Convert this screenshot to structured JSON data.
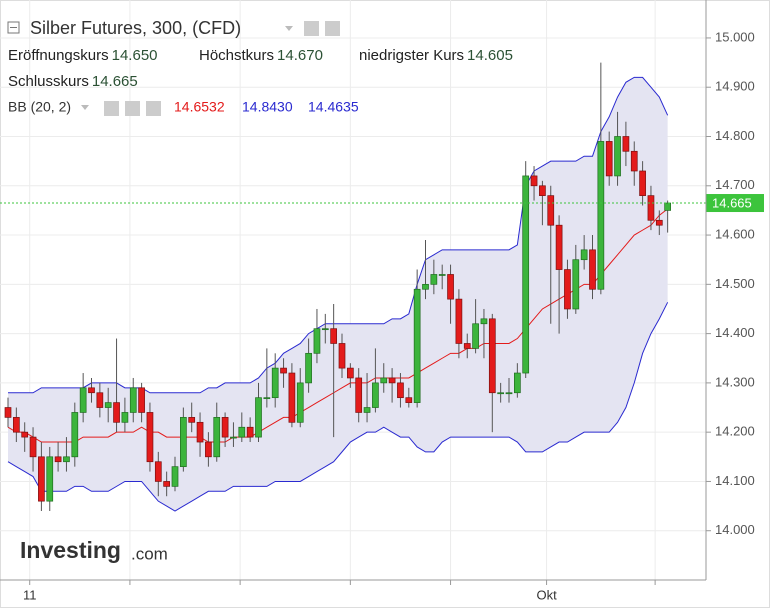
{
  "chart_data": {
    "type": "candlestick",
    "title": "Silber Futures, 300, (CFD)",
    "ohlc_legend": [
      {
        "name": "Eröffnungskurs",
        "label": "14.650"
      },
      {
        "name": "Höchstkurs",
        "label": "14.670"
      },
      {
        "name": "niedrigster Kurs",
        "label": "14.605"
      },
      {
        "name": "Schlusskurs",
        "label": "14.665"
      }
    ],
    "up_color": "#3cb43c",
    "down_color": "#e31b1b",
    "open": [
      14.25,
      14.23,
      14.2,
      14.19,
      14.15,
      14.06,
      14.15,
      14.14,
      14.15,
      14.24,
      14.29,
      14.28,
      14.25,
      14.26,
      14.22,
      14.24,
      14.29,
      14.24,
      14.14,
      14.1,
      14.09,
      14.13,
      14.23,
      14.22,
      14.18,
      14.15,
      14.23,
      14.19,
      14.19,
      14.21,
      14.19,
      14.27,
      14.27,
      14.33,
      14.32,
      14.22,
      14.3,
      14.36,
      14.41,
      14.41,
      14.38,
      14.33,
      14.31,
      14.24,
      14.25,
      14.3,
      14.31,
      14.3,
      14.27,
      14.26,
      14.49,
      14.5,
      14.52,
      14.52,
      14.47,
      14.38,
      14.37,
      14.42,
      14.43,
      14.28,
      14.28,
      14.28,
      14.32,
      14.72,
      14.7,
      14.68,
      14.62,
      14.53,
      14.45,
      14.55,
      14.57,
      14.49,
      14.79,
      14.72,
      14.8,
      14.77,
      14.73,
      14.68,
      14.63,
      14.65
    ],
    "high": [
      14.27,
      14.25,
      14.22,
      14.21,
      14.18,
      14.17,
      14.18,
      14.19,
      14.26,
      14.32,
      14.31,
      14.3,
      14.29,
      14.39,
      14.27,
      14.31,
      14.3,
      14.26,
      14.16,
      14.12,
      14.15,
      14.25,
      14.26,
      14.24,
      14.2,
      14.26,
      14.24,
      14.22,
      14.24,
      14.23,
      14.3,
      14.37,
      14.36,
      14.35,
      14.34,
      14.33,
      14.39,
      14.45,
      14.44,
      14.46,
      14.4,
      14.34,
      14.33,
      14.32,
      14.37,
      14.34,
      14.33,
      14.32,
      14.29,
      14.53,
      14.59,
      14.55,
      14.54,
      14.54,
      14.49,
      14.4,
      14.47,
      14.45,
      14.44,
      14.3,
      14.31,
      14.34,
      14.75,
      14.74,
      14.71,
      14.7,
      14.64,
      14.55,
      14.58,
      14.6,
      14.6,
      14.95,
      14.81,
      14.85,
      14.83,
      14.79,
      14.75,
      14.7,
      14.65,
      14.67
    ],
    "low": [
      14.21,
      14.18,
      14.16,
      14.12,
      14.04,
      14.04,
      14.12,
      14.12,
      14.13,
      14.22,
      14.26,
      14.23,
      14.22,
      14.2,
      14.2,
      14.22,
      14.22,
      14.12,
      14.07,
      14.07,
      14.08,
      14.12,
      14.2,
      14.15,
      14.13,
      14.14,
      14.17,
      14.17,
      14.18,
      14.18,
      14.18,
      14.25,
      14.25,
      14.29,
      14.21,
      14.21,
      14.28,
      14.34,
      14.38,
      14.19,
      14.31,
      14.29,
      14.22,
      14.22,
      14.24,
      14.28,
      14.26,
      14.25,
      14.25,
      14.25,
      14.47,
      14.48,
      14.49,
      14.42,
      14.35,
      14.35,
      14.36,
      14.35,
      14.2,
      14.26,
      14.26,
      14.27,
      14.31,
      14.67,
      14.62,
      14.42,
      14.4,
      14.43,
      14.44,
      14.53,
      14.47,
      14.48,
      14.7,
      14.7,
      14.74,
      14.7,
      14.66,
      14.61,
      14.6,
      14.605
    ],
    "close": [
      14.23,
      14.2,
      14.19,
      14.15,
      14.06,
      14.15,
      14.14,
      14.15,
      14.24,
      14.29,
      14.28,
      14.25,
      14.26,
      14.22,
      14.24,
      14.29,
      14.24,
      14.14,
      14.1,
      14.09,
      14.13,
      14.23,
      14.22,
      14.18,
      14.15,
      14.23,
      14.19,
      14.19,
      14.21,
      14.19,
      14.27,
      14.27,
      14.33,
      14.32,
      14.22,
      14.3,
      14.36,
      14.41,
      14.41,
      14.38,
      14.33,
      14.31,
      14.24,
      14.25,
      14.3,
      14.31,
      14.3,
      14.27,
      14.26,
      14.49,
      14.5,
      14.52,
      14.52,
      14.47,
      14.38,
      14.37,
      14.42,
      14.43,
      14.28,
      14.28,
      14.28,
      14.32,
      14.72,
      14.7,
      14.68,
      14.62,
      14.53,
      14.45,
      14.55,
      14.57,
      14.49,
      14.79,
      14.72,
      14.8,
      14.77,
      14.73,
      14.68,
      14.63,
      14.62,
      14.665
    ],
    "indicator": {
      "name": "BB (20, 2)",
      "band_color": "#e4e4f2",
      "series": [
        {
          "color": "#e31b1b",
          "label": "14.6532",
          "values": [
            14.21,
            14.2,
            14.2,
            14.19,
            14.18,
            14.18,
            14.18,
            14.18,
            14.18,
            14.19,
            14.19,
            14.19,
            14.19,
            14.2,
            14.2,
            14.2,
            14.21,
            14.2,
            14.2,
            14.19,
            14.19,
            14.19,
            14.19,
            14.19,
            14.18,
            14.18,
            14.18,
            14.19,
            14.19,
            14.19,
            14.2,
            14.21,
            14.22,
            14.23,
            14.23,
            14.24,
            14.25,
            14.26,
            14.27,
            14.28,
            14.29,
            14.3,
            14.3,
            14.3,
            14.31,
            14.31,
            14.31,
            14.31,
            14.31,
            14.32,
            14.33,
            14.34,
            14.35,
            14.36,
            14.36,
            14.37,
            14.37,
            14.38,
            14.38,
            14.38,
            14.38,
            14.39,
            14.41,
            14.43,
            14.45,
            14.46,
            14.47,
            14.48,
            14.49,
            14.5,
            14.5,
            14.52,
            14.54,
            14.56,
            14.58,
            14.6,
            14.61,
            14.62,
            14.64,
            14.6532
          ]
        },
        {
          "color": "#2a2ad0",
          "label": "14.8430",
          "values": [
            14.28,
            14.28,
            14.28,
            14.28,
            14.29,
            14.29,
            14.29,
            14.29,
            14.29,
            14.29,
            14.3,
            14.3,
            14.3,
            14.3,
            14.29,
            14.29,
            14.29,
            14.28,
            14.28,
            14.28,
            14.28,
            14.28,
            14.28,
            14.28,
            14.29,
            14.29,
            14.3,
            14.3,
            14.3,
            14.3,
            14.31,
            14.33,
            14.34,
            14.36,
            14.37,
            14.38,
            14.4,
            14.41,
            14.42,
            14.42,
            14.42,
            14.42,
            14.42,
            14.42,
            14.42,
            14.42,
            14.43,
            14.43,
            14.44,
            14.5,
            14.55,
            14.56,
            14.57,
            14.57,
            14.57,
            14.57,
            14.57,
            14.57,
            14.57,
            14.57,
            14.57,
            14.58,
            14.7,
            14.73,
            14.74,
            14.75,
            14.75,
            14.75,
            14.75,
            14.76,
            14.76,
            14.81,
            14.84,
            14.88,
            14.91,
            14.92,
            14.92,
            14.9,
            14.88,
            14.843
          ]
        },
        {
          "color": "#2a2ad0",
          "label": "14.4635",
          "values": [
            14.14,
            14.13,
            14.12,
            14.11,
            14.08,
            14.08,
            14.08,
            14.08,
            14.09,
            14.09,
            14.08,
            14.08,
            14.08,
            14.09,
            14.1,
            14.1,
            14.1,
            14.08,
            14.06,
            14.05,
            14.04,
            14.05,
            14.06,
            14.07,
            14.08,
            14.08,
            14.08,
            14.09,
            14.09,
            14.09,
            14.09,
            14.09,
            14.1,
            14.1,
            14.1,
            14.1,
            14.11,
            14.12,
            14.13,
            14.14,
            14.16,
            14.18,
            14.19,
            14.2,
            14.2,
            14.21,
            14.2,
            14.19,
            14.19,
            14.17,
            14.16,
            14.16,
            14.18,
            14.19,
            14.19,
            14.19,
            14.19,
            14.19,
            14.19,
            14.19,
            14.19,
            14.18,
            14.16,
            14.16,
            14.16,
            14.17,
            14.18,
            14.18,
            14.19,
            14.2,
            14.2,
            14.2,
            14.2,
            14.22,
            14.25,
            14.3,
            14.36,
            14.4,
            14.43,
            14.4635
          ]
        }
      ]
    },
    "price_line_color": "#3cc43c",
    "ylim": [
      13.9,
      15.077
    ],
    "yticks": [
      {
        "value": 14.0,
        "label": "14.000"
      },
      {
        "value": 14.1,
        "label": "14.100"
      },
      {
        "value": 14.2,
        "label": "14.200"
      },
      {
        "value": 14.3,
        "label": "14.300"
      },
      {
        "value": 14.4,
        "label": "14.400"
      },
      {
        "value": 14.5,
        "label": "14.500"
      },
      {
        "value": 14.6,
        "label": "14.600"
      },
      {
        "value": 14.7,
        "label": "14.700"
      },
      {
        "value": 14.8,
        "label": "14.800"
      },
      {
        "value": 14.9,
        "label": "14.900"
      },
      {
        "value": 15.0,
        "label": "15.000"
      }
    ],
    "xticks": [
      {
        "index": 2.6,
        "label": "11"
      },
      {
        "index": 14.6,
        "label": null
      },
      {
        "index": 27.8,
        "label": null
      },
      {
        "index": 41,
        "label": null
      },
      {
        "index": 53,
        "label": null
      },
      {
        "index": 64.5,
        "label": "Okt"
      },
      {
        "index": 77.5,
        "label": null
      }
    ],
    "grid": true,
    "watermark": {
      "brand": "Investing",
      "suffix": ".com"
    }
  }
}
